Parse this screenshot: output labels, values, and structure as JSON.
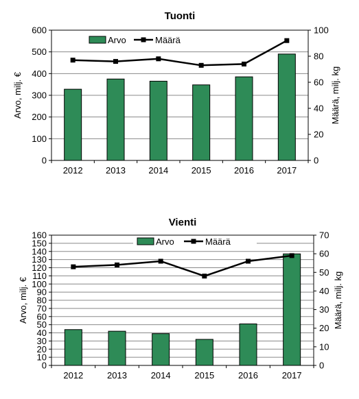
{
  "colors": {
    "bar": "#2e8b57",
    "line": "#000000",
    "grid": "#888888"
  },
  "chart_data": [
    {
      "type": "bar+line",
      "title": "Tuonti",
      "categories": [
        "2012",
        "2013",
        "2014",
        "2015",
        "2016",
        "2017"
      ],
      "series": [
        {
          "name": "Arvo",
          "type": "bar",
          "axis": "left",
          "values": [
            328,
            375,
            365,
            348,
            385,
            490
          ]
        },
        {
          "name": "Määrä",
          "type": "line",
          "axis": "right",
          "values": [
            77,
            76,
            78,
            73,
            74,
            92
          ]
        }
      ],
      "ylabel": "Arvo, milj. €",
      "y2label": "Määrä, milj. kg",
      "ylim": [
        0,
        600
      ],
      "y_ticks": [
        0,
        100,
        200,
        300,
        400,
        500,
        600
      ],
      "y2lim": [
        0,
        100
      ],
      "y2_ticks": [
        0,
        20,
        40,
        60,
        80,
        100
      ],
      "grid": true,
      "legend": "top"
    },
    {
      "type": "bar+line",
      "title": "Vienti",
      "categories": [
        "2012",
        "2013",
        "2014",
        "2015",
        "2016",
        "2017"
      ],
      "series": [
        {
          "name": "Arvo",
          "type": "bar",
          "axis": "left",
          "values": [
            44,
            42,
            39,
            32,
            51,
            137
          ]
        },
        {
          "name": "Määrä",
          "type": "line",
          "axis": "right",
          "values": [
            53,
            54,
            56,
            48,
            56,
            59
          ]
        }
      ],
      "ylabel": "Arvo, milj. €",
      "y2label": "Määrä, milj. kg",
      "ylim": [
        0,
        160
      ],
      "y_ticks": [
        0,
        10,
        20,
        30,
        40,
        50,
        60,
        70,
        80,
        90,
        100,
        110,
        120,
        130,
        140,
        150,
        160
      ],
      "y2lim": [
        0,
        70
      ],
      "y2_ticks": [
        0,
        10,
        20,
        30,
        40,
        50,
        60,
        70
      ],
      "grid": true,
      "legend": "top"
    }
  ]
}
